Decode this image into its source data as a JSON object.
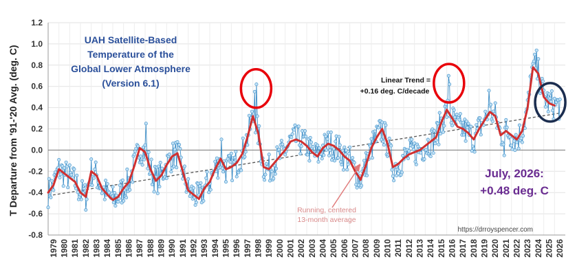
{
  "chart_data": {
    "type": "line",
    "title_lines": [
      "UAH Satellite-Based",
      "Temperature of the",
      "Global Lower Atmosphere",
      "(Version 6.1)"
    ],
    "ylabel": "T Departure from '91-'20 Avg. (deg. C)",
    "xlabel": "",
    "ylim": [
      -0.8,
      1.2
    ],
    "yticks": [
      "1.2",
      "1.0",
      "0.8",
      "0.6",
      "0.4",
      "0.2",
      "0.0",
      "-0.2",
      "-0.4",
      "-0.6",
      "-0.8"
    ],
    "xlim": [
      1979,
      2027
    ],
    "x_tick_labels": [
      "1979",
      "1980",
      "1981",
      "1982",
      "1983",
      "1984",
      "1985",
      "1986",
      "1987",
      "1988",
      "1989",
      "1990",
      "1991",
      "1992",
      "1993",
      "1994",
      "1995",
      "1996",
      "1997",
      "1998",
      "1999",
      "2000",
      "2001",
      "2002",
      "2003",
      "2004",
      "2005",
      "2006",
      "2007",
      "2008",
      "2009",
      "2010",
      "2011",
      "2012",
      "2013",
      "2014",
      "2015",
      "2016",
      "2017",
      "2018",
      "2019",
      "2020",
      "2021",
      "2022",
      "2023",
      "2024",
      "2025",
      "2026"
    ],
    "grid": true,
    "monthly_color": "#3a8cc6",
    "running_color": "#d03030",
    "trend_color": "#555555",
    "circle_color_red": "#e8000a",
    "circle_color_navy": "#1b2d4f",
    "series": [
      {
        "name": "Running, centered 13-month average",
        "x": [
          1979,
          1979.5,
          1980,
          1980.5,
          1981,
          1981.5,
          1982,
          1982.5,
          1983,
          1983.5,
          1984,
          1984.5,
          1985,
          1985.5,
          1986,
          1986.5,
          1987,
          1987.5,
          1988,
          1988.5,
          1989,
          1989.5,
          1990,
          1990.5,
          1991,
          1991.5,
          1992,
          1992.5,
          1993,
          1993.5,
          1994,
          1994.5,
          1995,
          1995.5,
          1996,
          1996.5,
          1997,
          1997.5,
          1998,
          1998.5,
          1999,
          1999.5,
          2000,
          2000.5,
          2001,
          2001.5,
          2002,
          2002.5,
          2003,
          2003.5,
          2004,
          2004.5,
          2005,
          2005.5,
          2006,
          2006.5,
          2007,
          2007.5,
          2008,
          2008.5,
          2009,
          2009.5,
          2010,
          2010.5,
          2011,
          2011.5,
          2012,
          2012.5,
          2013,
          2013.5,
          2014,
          2014.5,
          2015,
          2015.5,
          2016,
          2016.5,
          2017,
          2017.5,
          2018,
          2018.5,
          2019,
          2019.5,
          2020,
          2020.5,
          2021,
          2021.5,
          2022,
          2022.5,
          2023,
          2023.5,
          2024,
          2024.5,
          2025,
          2025.5,
          2026
        ],
        "values": [
          -0.4,
          -0.33,
          -0.18,
          -0.22,
          -0.26,
          -0.3,
          -0.4,
          -0.44,
          -0.2,
          -0.24,
          -0.36,
          -0.42,
          -0.47,
          -0.44,
          -0.36,
          -0.3,
          -0.15,
          0.02,
          -0.02,
          -0.18,
          -0.29,
          -0.24,
          -0.14,
          -0.06,
          -0.03,
          -0.2,
          -0.38,
          -0.42,
          -0.46,
          -0.36,
          -0.3,
          -0.18,
          -0.08,
          -0.18,
          -0.16,
          -0.12,
          -0.04,
          0.12,
          0.32,
          0.16,
          -0.16,
          -0.18,
          -0.12,
          -0.06,
          0.0,
          0.08,
          0.1,
          0.08,
          0.04,
          -0.02,
          -0.06,
          0.02,
          0.06,
          0.04,
          0.0,
          -0.06,
          -0.1,
          -0.2,
          -0.28,
          -0.14,
          0.02,
          0.12,
          0.2,
          0.06,
          -0.16,
          -0.13,
          -0.08,
          -0.04,
          -0.02,
          0.0,
          0.04,
          0.08,
          0.12,
          0.26,
          0.38,
          0.3,
          0.22,
          0.2,
          0.16,
          0.1,
          0.2,
          0.28,
          0.36,
          0.32,
          0.14,
          0.18,
          0.14,
          0.1,
          0.18,
          0.4,
          0.78,
          0.72,
          0.5,
          0.44,
          0.42
        ]
      },
      {
        "name": "Linear Trend",
        "x": [
          1979,
          2026.6
        ],
        "values": [
          -0.43,
          0.35
        ]
      }
    ],
    "annotations": {
      "linear_trend_lines": [
        "Linear Trend =",
        "+0.16 deg. C/decade"
      ],
      "latest_lines": [
        "July, 2026:",
        "+0.48 deg. C"
      ],
      "running_lines": [
        "Running, centered",
        "13-month average"
      ],
      "source": "https://drroyspencer.com"
    },
    "highlights": [
      {
        "x": 1998.3,
        "y": 0.58,
        "color": "red"
      },
      {
        "x": 2016.2,
        "y": 0.63,
        "color": "red"
      },
      {
        "x": 2025.6,
        "y": 0.45,
        "color": "navy"
      }
    ]
  }
}
